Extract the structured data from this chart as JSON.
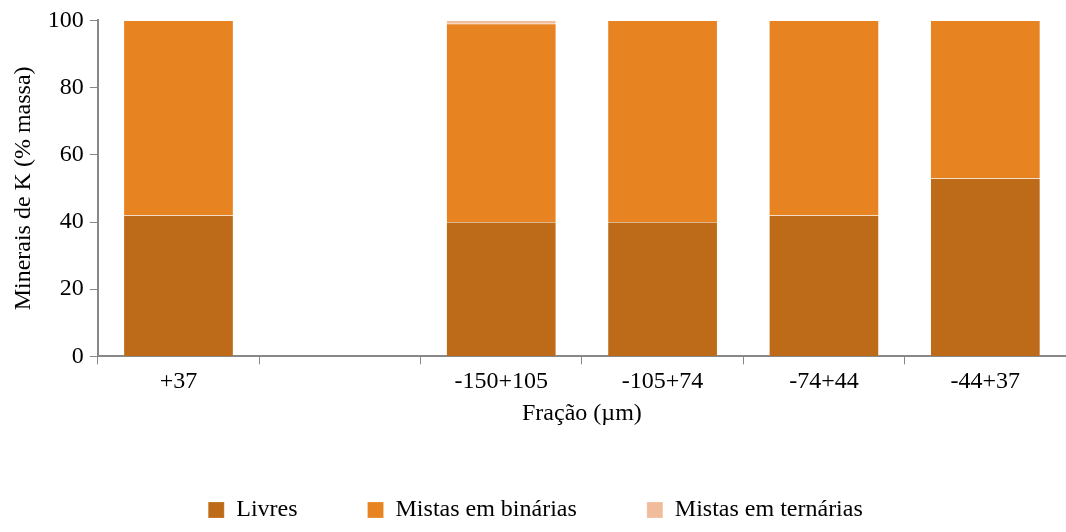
{
  "chart_data": {
    "type": "bar",
    "stacked": true,
    "xlabel": "Fração (µm)",
    "ylabel": "Minerais de K (% massa)",
    "categories": [
      "+37",
      null,
      "-150+105",
      "-105+74",
      "-74+44",
      "-44+37"
    ],
    "series": [
      {
        "name": "Livres",
        "color": "#be6b19",
        "values": [
          42,
          null,
          40,
          40,
          42,
          53
        ]
      },
      {
        "name": "Mistas em binárias",
        "color": "#e78321",
        "values": [
          58,
          null,
          59,
          60,
          58,
          47
        ]
      },
      {
        "name": "Mistas em ternárias",
        "color": "#f0bc9b",
        "values": [
          0,
          null,
          1,
          0,
          0,
          0
        ]
      }
    ],
    "ylim": [
      0,
      100
    ],
    "yticks": [
      0,
      20,
      40,
      60,
      80,
      100
    ],
    "grid": false,
    "legend": "bottom"
  }
}
